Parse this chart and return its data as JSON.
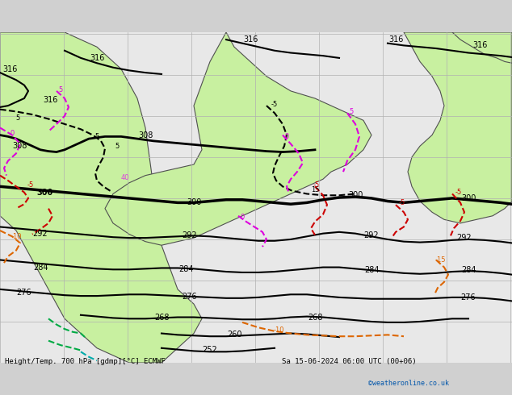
{
  "title_left": "Height/Temp. 700 hPa [gdmp][°C] ECMWF",
  "title_right": "Sa 15-06-2024 06:00 UTC (00+06)",
  "credit": "©weatheronline.co.uk",
  "bg_land": "#c8f0a0",
  "bg_sea": "#e8e8e8",
  "bg_land2": "#b8e890",
  "grid_color": "#b0b0b0",
  "coast_color": "#505050",
  "height_color": "#000000",
  "temp_pos_color": "#cc0000",
  "temp_neg_color": "#cc6600",
  "temp_zero_color": "#cc44cc",
  "temp_special_color": "#00aa00",
  "label_color_height": "#000000",
  "figsize": [
    6.34,
    4.9
  ],
  "dpi": 100
}
